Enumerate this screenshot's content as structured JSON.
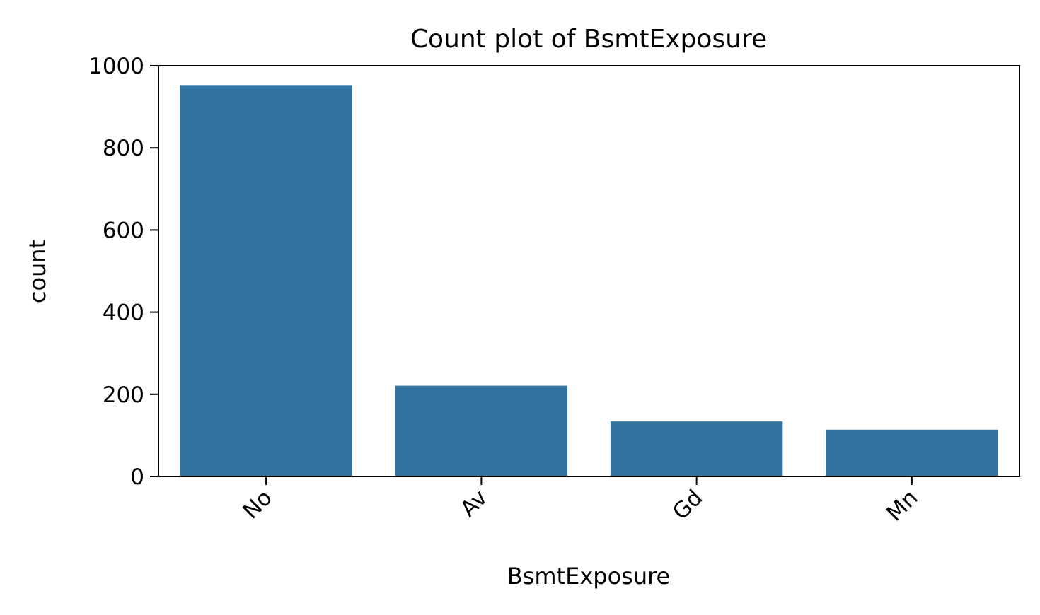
{
  "chart_data": {
    "type": "bar",
    "title": "Count plot of BsmtExposure",
    "xlabel": "BsmtExposure",
    "ylabel": "count",
    "categories": [
      "No",
      "Av",
      "Gd",
      "Mn"
    ],
    "values": [
      953,
      221,
      134,
      114
    ],
    "ylim": [
      0,
      1000
    ],
    "yticks": [
      0,
      200,
      400,
      600,
      800,
      1000
    ],
    "xtick_rotation_deg": 45,
    "grid": false,
    "legend": "none",
    "bar_color": "#3274a1"
  }
}
